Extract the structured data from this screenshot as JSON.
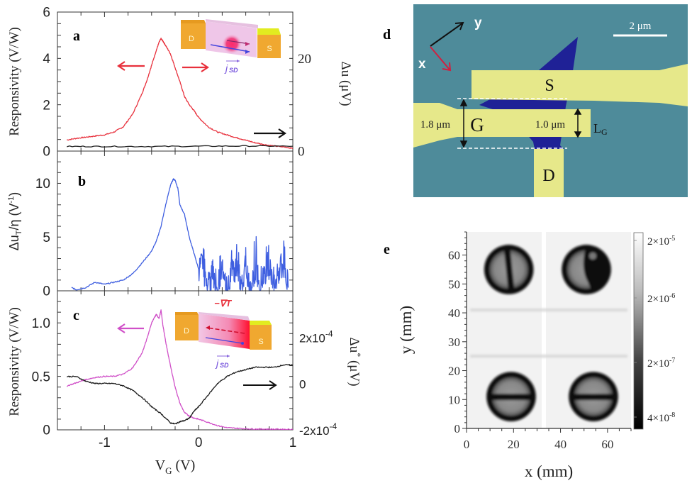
{
  "chart_data": [
    {
      "panel": "a",
      "type": "line",
      "xlabel": "",
      "ylabel": "Responsivity (V/W)",
      "ylabel_right": "Δu (μV)",
      "xlim": [
        -1.5,
        1
      ],
      "ylim": [
        0,
        6
      ],
      "ylim_right": [
        0,
        30
      ],
      "xticks": [
        -1,
        0,
        1
      ],
      "yticks": [
        0,
        2,
        4,
        6
      ],
      "yticks_right": [
        0,
        20
      ],
      "grid": false,
      "series": [
        {
          "name": "Responsivity",
          "axis": "left",
          "color": "#e8303c",
          "x": [
            -1.4,
            -1.3,
            -1.2,
            -1.1,
            -1.0,
            -0.9,
            -0.8,
            -0.7,
            -0.6,
            -0.55,
            -0.5,
            -0.45,
            -0.42,
            -0.4,
            -0.38,
            -0.35,
            -0.3,
            -0.25,
            -0.2,
            -0.15,
            -0.1,
            -0.05,
            0.0,
            0.1,
            0.2,
            0.3,
            0.4,
            0.5,
            0.6,
            0.7,
            0.8,
            0.9,
            1.0
          ],
          "y": [
            0.48,
            0.55,
            0.6,
            0.65,
            0.7,
            0.82,
            1.05,
            1.6,
            2.5,
            3.05,
            3.7,
            4.35,
            4.7,
            4.85,
            4.75,
            4.55,
            4.2,
            3.6,
            3.0,
            2.35,
            2.0,
            1.75,
            1.45,
            1.05,
            0.82,
            0.7,
            0.58,
            0.47,
            0.36,
            0.28,
            0.22,
            0.18,
            0.12
          ]
        },
        {
          "name": "Δu",
          "axis": "right",
          "color": "#222222",
          "x": [
            -1.4,
            -1.0,
            -0.5,
            0.0,
            0.5,
            1.0
          ],
          "y": [
            1.0,
            1.0,
            1.0,
            1.05,
            1.1,
            1.05
          ]
        }
      ],
      "annotations": [
        {
          "text": "a",
          "type": "panel-label"
        },
        {
          "text": "←  → arrows pointing to left axis",
          "type": "arrow",
          "color": "#e8303c"
        },
        {
          "text": "→ arrow pointing to right axis",
          "type": "arrow",
          "color": "#111111"
        },
        {
          "text": "j_SD",
          "type": "inset-label"
        }
      ]
    },
    {
      "panel": "b",
      "type": "line",
      "xlabel": "",
      "ylabel": "Δu_T/η (V⁻¹)",
      "xlim": [
        -1.5,
        1
      ],
      "ylim": [
        0,
        13
      ],
      "xticks": [
        -1,
        0,
        1
      ],
      "yticks": [
        0,
        5,
        10
      ],
      "grid": false,
      "series": [
        {
          "name": "Δu_T/η",
          "color": "#3f5fe0",
          "x": [
            -1.35,
            -1.3,
            -1.2,
            -1.1,
            -1.0,
            -0.9,
            -0.8,
            -0.7,
            -0.6,
            -0.5,
            -0.45,
            -0.4,
            -0.35,
            -0.3,
            -0.27,
            -0.25,
            -0.22,
            -0.2,
            -0.15,
            -0.1,
            -0.05,
            0.0,
            0.05,
            0.1,
            0.15,
            0.2,
            0.25,
            0.3,
            0.35,
            0.4,
            0.45,
            0.5,
            0.55,
            0.6,
            0.65,
            0.7,
            0.75,
            0.8,
            0.85,
            0.9,
            0.95
          ],
          "y": [
            0.3,
            0.1,
            0.3,
            0.8,
            0.6,
            0.8,
            1.0,
            1.6,
            2.6,
            3.7,
            4.6,
            6.0,
            8.0,
            9.8,
            10.4,
            10.3,
            9.5,
            8.0,
            7.1,
            5.0,
            3.5,
            2.0,
            2.8,
            0.8,
            1.5,
            0.3,
            2.2,
            0.4,
            1.8,
            3.1,
            0.5,
            2.4,
            0.2,
            2.8,
            0.6,
            1.9,
            3.3,
            0.4,
            2.0,
            3.2,
            0.3
          ]
        }
      ],
      "annotations": [
        {
          "text": "b",
          "type": "panel-label"
        }
      ]
    },
    {
      "panel": "c",
      "type": "line",
      "xlabel": "V_G (V)",
      "ylabel": "Responsivity (V/W)",
      "ylabel_right": "Δu* (μV)",
      "xlim": [
        -1.5,
        1
      ],
      "ylim": [
        0,
        1.3
      ],
      "ylim_right": [
        -0.0002,
        0.0004
      ],
      "xticks": [
        -1,
        0,
        1
      ],
      "xticklabels": [
        "-1",
        "0",
        "1"
      ],
      "yticks": [
        0,
        0.5,
        1.0
      ],
      "yticklabels": [
        "0",
        "0.5",
        "1.0"
      ],
      "yticks_right": [
        -0.0002,
        0,
        0.0002
      ],
      "yticklabels_right": [
        "-2x10-4",
        "0",
        "2x10-4"
      ],
      "grid": false,
      "series": [
        {
          "name": "Responsivity",
          "axis": "left",
          "color": "#d050c8",
          "x": [
            -1.4,
            -1.3,
            -1.2,
            -1.1,
            -1.0,
            -0.9,
            -0.8,
            -0.7,
            -0.6,
            -0.55,
            -0.5,
            -0.47,
            -0.45,
            -0.42,
            -0.4,
            -0.38,
            -0.35,
            -0.3,
            -0.25,
            -0.2,
            -0.15,
            -0.1,
            -0.05,
            0.0,
            0.1,
            0.2,
            0.3,
            0.4,
            0.5,
            0.6,
            0.7,
            0.8,
            0.9,
            1.0
          ],
          "y": [
            0.41,
            0.44,
            0.47,
            0.49,
            0.5,
            0.5,
            0.52,
            0.58,
            0.72,
            0.85,
            1.0,
            1.05,
            1.08,
            1.04,
            1.12,
            0.98,
            0.82,
            0.6,
            0.4,
            0.25,
            0.16,
            0.13,
            0.11,
            0.1,
            0.07,
            0.04,
            0.02,
            0.015,
            0.01,
            0.008,
            0.007,
            0.006,
            0.005,
            0.005
          ]
        },
        {
          "name": "Δu*",
          "axis": "right",
          "color": "#1a1a1a",
          "x": [
            -1.4,
            -1.3,
            -1.2,
            -1.1,
            -1.0,
            -0.9,
            -0.8,
            -0.7,
            -0.6,
            -0.5,
            -0.4,
            -0.3,
            -0.25,
            -0.2,
            -0.15,
            -0.1,
            -0.05,
            0.0,
            0.1,
            0.2,
            0.3,
            0.4,
            0.5,
            0.6,
            0.7,
            0.8,
            0.9,
            1.0
          ],
          "y": [
            3e-05,
            3e-05,
            1e-05,
            0.0,
            0.0,
            0.0,
            -1e-05,
            -3e-05,
            -6e-05,
            -0.0001,
            -0.00013,
            -0.00017,
            -0.000175,
            -0.000165,
            -0.00016,
            -0.00015,
            -0.00012,
            -0.0001,
            -5e-05,
            0.0,
            3e-05,
            5e-05,
            6e-05,
            7e-05,
            7e-05,
            7e-05,
            8e-05,
            8e-05
          ]
        }
      ],
      "annotations": [
        {
          "text": "c",
          "type": "panel-label"
        },
        {
          "text": "−∇T",
          "type": "inset-label",
          "color": "#e8303c"
        },
        {
          "text": "j_SD",
          "type": "inset-label"
        }
      ]
    },
    {
      "panel": "e",
      "type": "heatmap",
      "xlabel": "x (mm)",
      "ylabel": "y (mm)",
      "xlim": [
        0,
        70
      ],
      "ylim": [
        0,
        68
      ],
      "xticks": [
        0,
        20,
        40,
        60
      ],
      "yticks": [
        0,
        10,
        20,
        30,
        40,
        50,
        60
      ],
      "colorbar": {
        "scale": "log",
        "ticks": [
          "2×10-5",
          "2×10-6",
          "2×10-7",
          "4×10-8"
        ],
        "min": 4e-08,
        "max": 2e-05,
        "colormap": "gray"
      },
      "features": [
        {
          "kind": "ring-with-bar",
          "center_mm": [
            18,
            55
          ],
          "radius_mm": 10.5,
          "bar": "vertical-tilted"
        },
        {
          "kind": "ring-half-dark",
          "center_mm": [
            51,
            55
          ],
          "radius_mm": 10.5,
          "dark": "right"
        },
        {
          "kind": "ring-with-bar",
          "center_mm": [
            19,
            11
          ],
          "radius_mm": 10.5,
          "bar": "horizontal"
        },
        {
          "kind": "ring-with-bar",
          "center_mm": [
            54,
            11
          ],
          "radius_mm": 10.5,
          "bar": "horizontal"
        }
      ]
    }
  ],
  "panels": {
    "a": {
      "label": "a",
      "ylabel": "Responsivity (V/W)",
      "ylabel_right": "Δu (μV)",
      "inset": {
        "drain": "D",
        "source": "S",
        "current": "j",
        "current_sub": "SD"
      }
    },
    "b": {
      "label": "b",
      "ylabel_main": "Δu",
      "ylabel_sub": "T",
      "ylabel_rest": "/η (V",
      "ylabel_sup": "-1",
      "ylabel_end": ")"
    },
    "c": {
      "label": "c",
      "ylabel": "Responsivity (V/W)",
      "ylabel_right_main": "Δu",
      "ylabel_right_sup": "*",
      "ylabel_right_unit": " (μV)",
      "xlabel_main": "V",
      "xlabel_sub": "G",
      "xlabel_unit": " (V)",
      "inset": {
        "drain": "D",
        "source": "S",
        "gradient": "−∇T",
        "current": "j",
        "current_sub": "SD"
      }
    },
    "d": {
      "label": "d",
      "axis_x": "x",
      "axis_y": "y",
      "scalebar": "2 μm",
      "source": "S",
      "gate": "G",
      "drain": "D",
      "gate_width": "1.8 μm",
      "gate_length": "1.0 μm",
      "lg_main": "L",
      "lg_sub": "G",
      "colors": {
        "substrate": "#4e8b9a",
        "metal": "#e6e88a",
        "flake": "#1f2196"
      }
    },
    "e": {
      "label": "e",
      "xlabel": "x (mm)",
      "ylabel": "y (mm)",
      "xticks": [
        "0",
        "20",
        "40",
        "60"
      ],
      "yticks": [
        "0",
        "10",
        "20",
        "30",
        "40",
        "50",
        "60"
      ],
      "cbar_labels": [
        {
          "base": "2×10",
          "exp": "-5"
        },
        {
          "base": "2×10",
          "exp": "-6"
        },
        {
          "base": "2×10",
          "exp": "-7"
        },
        {
          "base": "4×10",
          "exp": "-8"
        }
      ]
    }
  }
}
